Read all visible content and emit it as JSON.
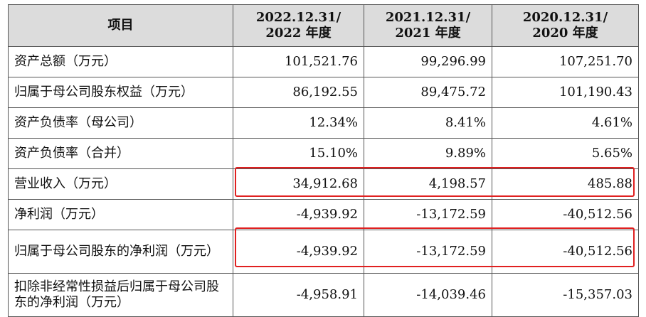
{
  "table": {
    "headers": {
      "item": "项目",
      "y2022_line1": "2022.12.31/",
      "y2022_line2": "2022 年度",
      "y2021_line1": "2021.12.31/",
      "y2021_line2": "2021 年度",
      "y2020_line1": "2020.12.31/",
      "y2020_line2": "2020 年度"
    },
    "rows": [
      {
        "label": "资产总额（万元）",
        "v2022": "101,521.76",
        "v2021": "99,296.99",
        "v2020": "107,251.70"
      },
      {
        "label": "归属于母公司股东权益（万元）",
        "v2022": "86,192.55",
        "v2021": "89,475.72",
        "v2020": "101,190.43"
      },
      {
        "label": "资产负债率（母公司）",
        "v2022": "12.34%",
        "v2021": "8.41%",
        "v2020": "4.61%"
      },
      {
        "label": "资产负债率（合并）",
        "v2022": "15.10%",
        "v2021": "9.89%",
        "v2020": "5.65%"
      },
      {
        "label": "营业收入（万元）",
        "v2022": "34,912.68",
        "v2021": "4,198.57",
        "v2020": "485.88"
      },
      {
        "label": "净利润（万元）",
        "v2022": "-4,939.92",
        "v2021": "-13,172.59",
        "v2020": "-40,512.56"
      },
      {
        "label": "归属于母公司股东的净利润（万元）",
        "v2022": "-4,939.92",
        "v2021": "-13,172.59",
        "v2020": "-40,512.56"
      },
      {
        "label": "扣除非经常性损益后归属于母公司股东的净利润（万元）",
        "v2022": "-4,958.91",
        "v2021": "-14,039.46",
        "v2020": "-15,357.03"
      }
    ]
  },
  "highlight_color": "#e02020"
}
